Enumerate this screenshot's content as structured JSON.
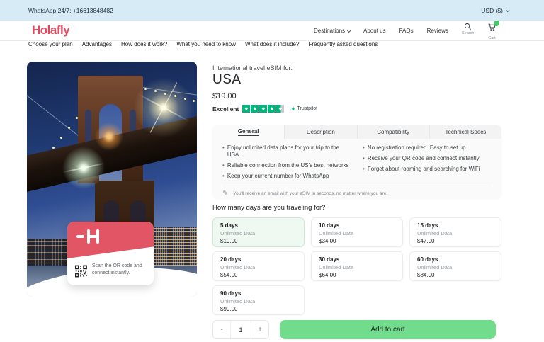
{
  "topbar": {
    "whatsapp_label": "WhatsApp 24/7: +16613848482",
    "currency_label": "USD ($)"
  },
  "header": {
    "logo_text": "Holafly",
    "nav_items": [
      {
        "label": "Destinations",
        "has_dropdown": true
      },
      {
        "label": "About us"
      },
      {
        "label": "FAQs"
      },
      {
        "label": "Reviews"
      }
    ],
    "search_label": "Search",
    "cart_label": "Cart"
  },
  "subnav": {
    "items": [
      "Choose your plan",
      "Advantages",
      "How does it work?",
      "What you need to know",
      "What does it include?",
      "Frequently asked questions"
    ]
  },
  "product": {
    "eyebrow": "International travel eSIM for:",
    "title": "USA",
    "price": "$19.00",
    "rating": {
      "label": "Excellent",
      "stars": 4.5,
      "source": "Trustpilot"
    },
    "image_card": {
      "scan_text": "Scan the QR code and connect instantly."
    }
  },
  "tabs": [
    {
      "label": "General",
      "active": true
    },
    {
      "label": "Description"
    },
    {
      "label": "Compatibility"
    },
    {
      "label": "Technical Specs"
    }
  ],
  "tab_content": {
    "bullets_left": [
      "Enjoy unlimited data plans for your trip to the USA",
      "Reliable connection from the US's best networks",
      "Keep your current number for WhatsApp"
    ],
    "bullets_right": [
      "No registration required. Easy to set up",
      "Receive your QR code and connect instantly",
      "Forget about roaming and searching for WiFi"
    ],
    "note": "You'll receive an email with your eSIM in seconds, no matter where you are."
  },
  "days_section": {
    "question": "How many days are you traveling for?",
    "options": [
      {
        "days": "5 days",
        "data": "Unlimited Data",
        "price": "$19.00",
        "selected": true
      },
      {
        "days": "10 days",
        "data": "Unlimited Data",
        "price": "$34.00"
      },
      {
        "days": "15 days",
        "data": "Unlimited Data",
        "price": "$47.00"
      },
      {
        "days": "20 days",
        "data": "Unlimited Data",
        "price": "$54.00"
      },
      {
        "days": "30 days",
        "data": "Unlimited Data",
        "price": "$64.00"
      },
      {
        "days": "60 days",
        "data": "Unlimited Data",
        "price": "$84.00"
      },
      {
        "days": "90 days",
        "data": "Unlimited Data",
        "price": "$99.00"
      }
    ]
  },
  "purchase": {
    "minus_label": "-",
    "quantity": "1",
    "plus_label": "+",
    "add_to_cart_label": "Add to cart"
  },
  "colors": {
    "brand_red": "#e04a60",
    "topbar_blue": "#d6ebf5",
    "trustpilot_green": "#00b67a",
    "cta_green": "#70dc8c",
    "selected_option_bg": "#eff8f1"
  }
}
